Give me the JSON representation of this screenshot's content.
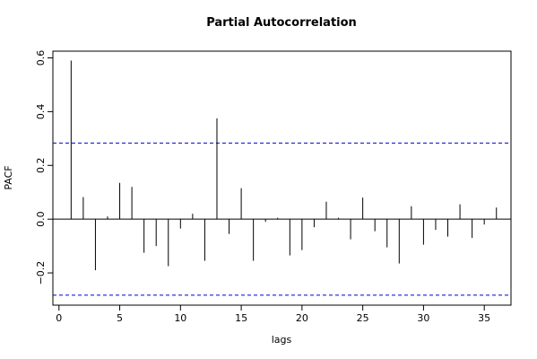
{
  "chart_data": {
    "type": "bar",
    "title": "Partial Autocorrelation",
    "xlabel": "lags",
    "ylabel": "PACF",
    "xlim": [
      -0.5,
      37.2
    ],
    "ylim": [
      -0.32,
      0.625
    ],
    "x_ticks": [
      0,
      5,
      10,
      15,
      20,
      25,
      30,
      35
    ],
    "y_ticks": [
      -0.2,
      0.0,
      0.2,
      0.4,
      0.6
    ],
    "x_tick_labels": [
      "0",
      "5",
      "10",
      "15",
      "20",
      "25",
      "30",
      "35"
    ],
    "y_tick_labels": [
      "−0.2",
      "0.0",
      "0.2",
      "0.4",
      "0.6"
    ],
    "confidence_bound": 0.283,
    "confidence_color": "#0000cc",
    "series": [
      {
        "lags": [
          1,
          2,
          3,
          4,
          5,
          6,
          7,
          8,
          9,
          10,
          11,
          12,
          13,
          14,
          15,
          16,
          17,
          18,
          19,
          20,
          21,
          22,
          23,
          24,
          25,
          26,
          27,
          28,
          29,
          30,
          31,
          32,
          33,
          34,
          35,
          36
        ],
        "values": [
          0.59,
          0.082,
          -0.19,
          0.01,
          0.135,
          0.12,
          -0.125,
          -0.1,
          -0.175,
          -0.035,
          0.02,
          -0.155,
          0.375,
          -0.055,
          0.115,
          -0.155,
          -0.01,
          0.005,
          -0.135,
          -0.115,
          -0.03,
          0.065,
          0.005,
          -0.075,
          0.08,
          -0.045,
          -0.105,
          -0.165,
          0.048,
          -0.095,
          -0.04,
          -0.065,
          0.055,
          -0.07,
          -0.02,
          0.043
        ]
      }
    ]
  }
}
